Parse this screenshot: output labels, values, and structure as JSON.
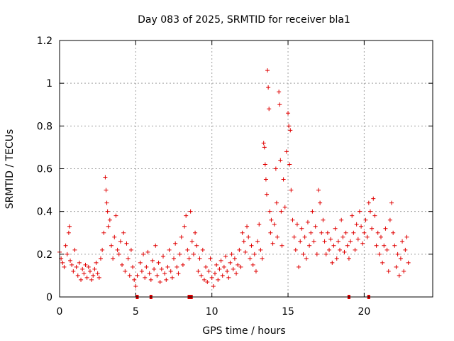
{
  "chart_data": {
    "type": "scatter",
    "title": "Day 083 of 2025, SRMTID for receiver bla1",
    "xlabel": "GPS time / hours",
    "ylabel": "SRMTID / TECUs",
    "xlim": [
      0,
      24.5
    ],
    "ylim": [
      0,
      1.2
    ],
    "xticks": [
      0,
      5,
      10,
      15,
      20
    ],
    "xtick_labels": [
      "0",
      "5",
      "10",
      "15",
      "20"
    ],
    "yticks": [
      0,
      0.2,
      0.4,
      0.6,
      0.8,
      1,
      1.2
    ],
    "ytick_labels": [
      "0",
      "0.2",
      "0.4",
      "0.6",
      "0.8",
      "1",
      "1.2"
    ],
    "grid": true,
    "marker": "plus",
    "color": "#e00000",
    "series": [
      {
        "name": "SRMTID",
        "points": [
          [
            0.0,
            0.21
          ],
          [
            0.1,
            0.18
          ],
          [
            0.2,
            0.16
          ],
          [
            0.3,
            0.14
          ],
          [
            0.4,
            0.24
          ],
          [
            0.5,
            0.2
          ],
          [
            0.6,
            0.3
          ],
          [
            0.65,
            0.33
          ],
          [
            0.7,
            0.17
          ],
          [
            0.8,
            0.15
          ],
          [
            0.9,
            0.12
          ],
          [
            1.0,
            0.22
          ],
          [
            1.1,
            0.14
          ],
          [
            1.2,
            0.1
          ],
          [
            1.3,
            0.16
          ],
          [
            1.4,
            0.08
          ],
          [
            1.5,
            0.13
          ],
          [
            1.6,
            0.11
          ],
          [
            1.7,
            0.15
          ],
          [
            1.8,
            0.09
          ],
          [
            1.9,
            0.14
          ],
          [
            2.0,
            0.12
          ],
          [
            2.1,
            0.08
          ],
          [
            2.2,
            0.1
          ],
          [
            2.3,
            0.13
          ],
          [
            2.4,
            0.16
          ],
          [
            2.5,
            0.11
          ],
          [
            2.6,
            0.09
          ],
          [
            2.7,
            0.18
          ],
          [
            2.8,
            0.22
          ],
          [
            2.9,
            0.3
          ],
          [
            3.0,
            0.56
          ],
          [
            3.05,
            0.5
          ],
          [
            3.1,
            0.44
          ],
          [
            3.15,
            0.4
          ],
          [
            3.2,
            0.33
          ],
          [
            3.3,
            0.36
          ],
          [
            3.4,
            0.24
          ],
          [
            3.5,
            0.18
          ],
          [
            3.6,
            0.28
          ],
          [
            3.7,
            0.38
          ],
          [
            3.8,
            0.22
          ],
          [
            3.9,
            0.2
          ],
          [
            4.0,
            0.26
          ],
          [
            4.1,
            0.15
          ],
          [
            4.2,
            0.3
          ],
          [
            4.3,
            0.12
          ],
          [
            4.4,
            0.25
          ],
          [
            4.5,
            0.18
          ],
          [
            4.6,
            0.1
          ],
          [
            4.7,
            0.22
          ],
          [
            4.8,
            0.14
          ],
          [
            4.9,
            0.08
          ],
          [
            5.0,
            0.05
          ],
          [
            5.1,
            0.1
          ],
          [
            5.3,
            0.16
          ],
          [
            5.4,
            0.12
          ],
          [
            5.5,
            0.2
          ],
          [
            5.6,
            0.09
          ],
          [
            5.7,
            0.14
          ],
          [
            5.8,
            0.21
          ],
          [
            5.9,
            0.11
          ],
          [
            6.0,
            0.08
          ],
          [
            6.1,
            0.17
          ],
          [
            6.2,
            0.13
          ],
          [
            6.3,
            0.24
          ],
          [
            6.4,
            0.1
          ],
          [
            6.5,
            0.16
          ],
          [
            6.6,
            0.07
          ],
          [
            6.7,
            0.13
          ],
          [
            6.8,
            0.19
          ],
          [
            6.9,
            0.11
          ],
          [
            7.0,
            0.08
          ],
          [
            7.1,
            0.14
          ],
          [
            7.2,
            0.22
          ],
          [
            7.3,
            0.12
          ],
          [
            7.4,
            0.09
          ],
          [
            7.5,
            0.18
          ],
          [
            7.6,
            0.25
          ],
          [
            7.7,
            0.14
          ],
          [
            7.8,
            0.11
          ],
          [
            7.9,
            0.2
          ],
          [
            8.0,
            0.28
          ],
          [
            8.1,
            0.15
          ],
          [
            8.2,
            0.33
          ],
          [
            8.3,
            0.38
          ],
          [
            8.4,
            0.22
          ],
          [
            8.5,
            0.18
          ],
          [
            8.6,
            0.4
          ],
          [
            8.7,
            0.26
          ],
          [
            8.8,
            0.2
          ],
          [
            8.9,
            0.3
          ],
          [
            9.0,
            0.24
          ],
          [
            9.1,
            0.12
          ],
          [
            9.2,
            0.18
          ],
          [
            9.3,
            0.1
          ],
          [
            9.4,
            0.22
          ],
          [
            9.5,
            0.08
          ],
          [
            9.6,
            0.14
          ],
          [
            9.7,
            0.07
          ],
          [
            9.8,
            0.12
          ],
          [
            9.9,
            0.18
          ],
          [
            10.0,
            0.09
          ],
          [
            10.1,
            0.05
          ],
          [
            10.2,
            0.11
          ],
          [
            10.3,
            0.15
          ],
          [
            10.4,
            0.08
          ],
          [
            10.5,
            0.13
          ],
          [
            10.6,
            0.17
          ],
          [
            10.7,
            0.1
          ],
          [
            10.8,
            0.14
          ],
          [
            10.9,
            0.19
          ],
          [
            11.0,
            0.12
          ],
          [
            11.1,
            0.09
          ],
          [
            11.2,
            0.16
          ],
          [
            11.3,
            0.2
          ],
          [
            11.4,
            0.13
          ],
          [
            11.5,
            0.18
          ],
          [
            11.6,
            0.11
          ],
          [
            11.7,
            0.15
          ],
          [
            11.8,
            0.22
          ],
          [
            11.9,
            0.14
          ],
          [
            12.0,
            0.3
          ],
          [
            12.1,
            0.26
          ],
          [
            12.2,
            0.21
          ],
          [
            12.3,
            0.33
          ],
          [
            12.4,
            0.28
          ],
          [
            12.5,
            0.18
          ],
          [
            12.6,
            0.24
          ],
          [
            12.7,
            0.15
          ],
          [
            12.8,
            0.2
          ],
          [
            12.9,
            0.12
          ],
          [
            13.0,
            0.26
          ],
          [
            13.1,
            0.34
          ],
          [
            13.2,
            0.22
          ],
          [
            13.3,
            0.18
          ],
          [
            13.4,
            0.72
          ],
          [
            13.45,
            0.7
          ],
          [
            13.5,
            0.62
          ],
          [
            13.55,
            0.55
          ],
          [
            13.6,
            0.48
          ],
          [
            13.65,
            1.06
          ],
          [
            13.7,
            0.98
          ],
          [
            13.75,
            0.88
          ],
          [
            13.8,
            0.4
          ],
          [
            13.85,
            0.3
          ],
          [
            13.9,
            0.36
          ],
          [
            14.0,
            0.25
          ],
          [
            14.1,
            0.34
          ],
          [
            14.2,
            0.6
          ],
          [
            14.25,
            0.44
          ],
          [
            14.3,
            0.28
          ],
          [
            14.4,
            0.96
          ],
          [
            14.45,
            0.9
          ],
          [
            14.5,
            0.64
          ],
          [
            14.55,
            0.4
          ],
          [
            14.6,
            0.24
          ],
          [
            14.7,
            0.55
          ],
          [
            14.8,
            0.42
          ],
          [
            14.9,
            0.68
          ],
          [
            15.0,
            0.86
          ],
          [
            15.05,
            0.8
          ],
          [
            15.1,
            0.62
          ],
          [
            15.15,
            0.78
          ],
          [
            15.2,
            0.5
          ],
          [
            15.3,
            0.36
          ],
          [
            15.4,
            0.28
          ],
          [
            15.5,
            0.22
          ],
          [
            15.6,
            0.34
          ],
          [
            15.7,
            0.14
          ],
          [
            15.8,
            0.26
          ],
          [
            15.9,
            0.32
          ],
          [
            16.0,
            0.2
          ],
          [
            16.1,
            0.28
          ],
          [
            16.2,
            0.18
          ],
          [
            16.3,
            0.35
          ],
          [
            16.4,
            0.24
          ],
          [
            16.5,
            0.3
          ],
          [
            16.6,
            0.4
          ],
          [
            16.7,
            0.26
          ],
          [
            16.8,
            0.33
          ],
          [
            16.9,
            0.2
          ],
          [
            17.0,
            0.5
          ],
          [
            17.1,
            0.44
          ],
          [
            17.2,
            0.3
          ],
          [
            17.3,
            0.36
          ],
          [
            17.4,
            0.26
          ],
          [
            17.5,
            0.2
          ],
          [
            17.6,
            0.3
          ],
          [
            17.7,
            0.22
          ],
          [
            17.8,
            0.27
          ],
          [
            17.9,
            0.16
          ],
          [
            18.0,
            0.24
          ],
          [
            18.1,
            0.32
          ],
          [
            18.2,
            0.18
          ],
          [
            18.3,
            0.26
          ],
          [
            18.4,
            0.22
          ],
          [
            18.5,
            0.36
          ],
          [
            18.6,
            0.28
          ],
          [
            18.7,
            0.21
          ],
          [
            18.8,
            0.3
          ],
          [
            18.9,
            0.24
          ],
          [
            19.0,
            0.18
          ],
          [
            19.1,
            0.26
          ],
          [
            19.2,
            0.38
          ],
          [
            19.3,
            0.3
          ],
          [
            19.4,
            0.22
          ],
          [
            19.5,
            0.34
          ],
          [
            19.6,
            0.27
          ],
          [
            19.7,
            0.4
          ],
          [
            19.8,
            0.33
          ],
          [
            19.9,
            0.25
          ],
          [
            20.0,
            0.3
          ],
          [
            20.1,
            0.36
          ],
          [
            20.2,
            0.28
          ],
          [
            20.3,
            0.44
          ],
          [
            20.4,
            0.4
          ],
          [
            20.5,
            0.32
          ],
          [
            20.6,
            0.46
          ],
          [
            20.7,
            0.38
          ],
          [
            20.8,
            0.24
          ],
          [
            20.9,
            0.3
          ],
          [
            21.0,
            0.2
          ],
          [
            21.1,
            0.28
          ],
          [
            21.2,
            0.16
          ],
          [
            21.3,
            0.24
          ],
          [
            21.4,
            0.32
          ],
          [
            21.5,
            0.22
          ],
          [
            21.6,
            0.12
          ],
          [
            21.7,
            0.36
          ],
          [
            21.8,
            0.44
          ],
          [
            21.9,
            0.3
          ],
          [
            22.0,
            0.24
          ],
          [
            22.1,
            0.14
          ],
          [
            22.2,
            0.2
          ],
          [
            22.3,
            0.1
          ],
          [
            22.4,
            0.18
          ],
          [
            22.5,
            0.26
          ],
          [
            22.6,
            0.12
          ],
          [
            22.7,
            0.22
          ],
          [
            22.8,
            0.28
          ],
          [
            22.9,
            0.16
          ]
        ]
      }
    ],
    "gap_markers": [
      5.1,
      6.0,
      8.5,
      8.65,
      19.0,
      20.3
    ]
  }
}
